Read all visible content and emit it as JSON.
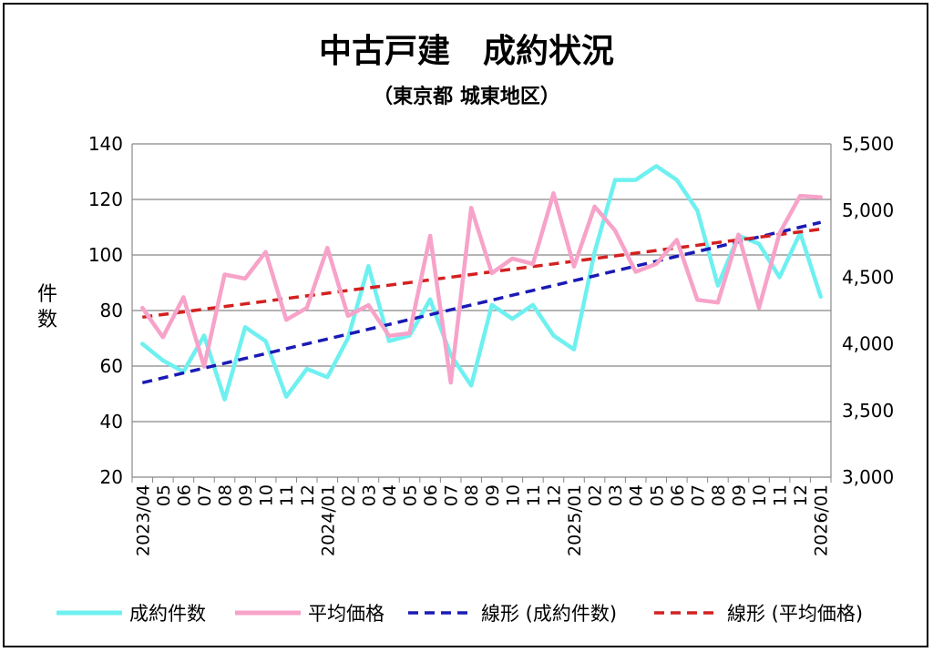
{
  "chart_data": {
    "type": "line",
    "title": "中古戸建　成約状況",
    "subtitle": "（東京都 城東地区）",
    "ylabel": "件数",
    "y2label": "",
    "ylim": [
      20,
      140
    ],
    "y2lim": [
      3000,
      5500
    ],
    "yticks": [
      "20",
      "40",
      "60",
      "80",
      "100",
      "120",
      "140"
    ],
    "y2ticks": [
      "3,000",
      "3,500",
      "4,000",
      "4,500",
      "5,000",
      "5,500"
    ],
    "grid": true,
    "legend_position": "bottom",
    "x": [
      "2023/04",
      "05",
      "06",
      "07",
      "08",
      "09",
      "10",
      "11",
      "12",
      "2024/01",
      "02",
      "03",
      "04",
      "05",
      "06",
      "07",
      "08",
      "09",
      "10",
      "11",
      "12",
      "2025/01",
      "02",
      "03",
      "04",
      "05",
      "06",
      "07",
      "08",
      "09",
      "10",
      "11",
      "12",
      "2026/01"
    ],
    "series": [
      {
        "name": "成約件数",
        "axis": "left",
        "color": "#6ff0f0",
        "style": "solid",
        "values": [
          68,
          62,
          58,
          71,
          48,
          74,
          69,
          49,
          59,
          56,
          70,
          96,
          69,
          71,
          84,
          64,
          53,
          82,
          77,
          82,
          71,
          66,
          101,
          127,
          127,
          132,
          127,
          116,
          89,
          107,
          104,
          92,
          108,
          85
        ]
      },
      {
        "name": "平均価格",
        "axis": "right",
        "color": "#f7a3c9",
        "style": "solid",
        "values": [
          4270,
          4050,
          4350,
          3830,
          4520,
          4490,
          4690,
          4180,
          4270,
          4720,
          4210,
          4290,
          4060,
          4080,
          4810,
          3710,
          5020,
          4530,
          4640,
          4600,
          5130,
          4580,
          5030,
          4850,
          4540,
          4600,
          4780,
          4330,
          4310,
          4820,
          4270,
          4830,
          5110,
          5100
        ]
      },
      {
        "name": "線形 (成約件数)",
        "axis": "left",
        "color": "#1a1ab5",
        "style": "dashed",
        "values": [
          54,
          55.75,
          57.5,
          59.25,
          61,
          62.75,
          64.5,
          66.25,
          68,
          69.75,
          71.5,
          73.25,
          75,
          76.75,
          78.5,
          80.25,
          82,
          83.75,
          85.5,
          87.25,
          89,
          90.75,
          92.5,
          94.25,
          96,
          97.75,
          99.5,
          101.25,
          103,
          104.75,
          106.5,
          108.25,
          110,
          111.75
        ]
      },
      {
        "name": "線形 (平均価格)",
        "axis": "right",
        "color": "#d42020",
        "style": "dashed",
        "values": [
          4200,
          4220,
          4240,
          4260,
          4280,
          4300,
          4320,
          4340,
          4360,
          4380,
          4400,
          4420,
          4440,
          4460,
          4480,
          4500,
          4520,
          4540,
          4560,
          4580,
          4600,
          4620,
          4640,
          4660,
          4680,
          4700,
          4720,
          4740,
          4760,
          4780,
          4800,
          4820,
          4840,
          4860
        ]
      }
    ]
  }
}
